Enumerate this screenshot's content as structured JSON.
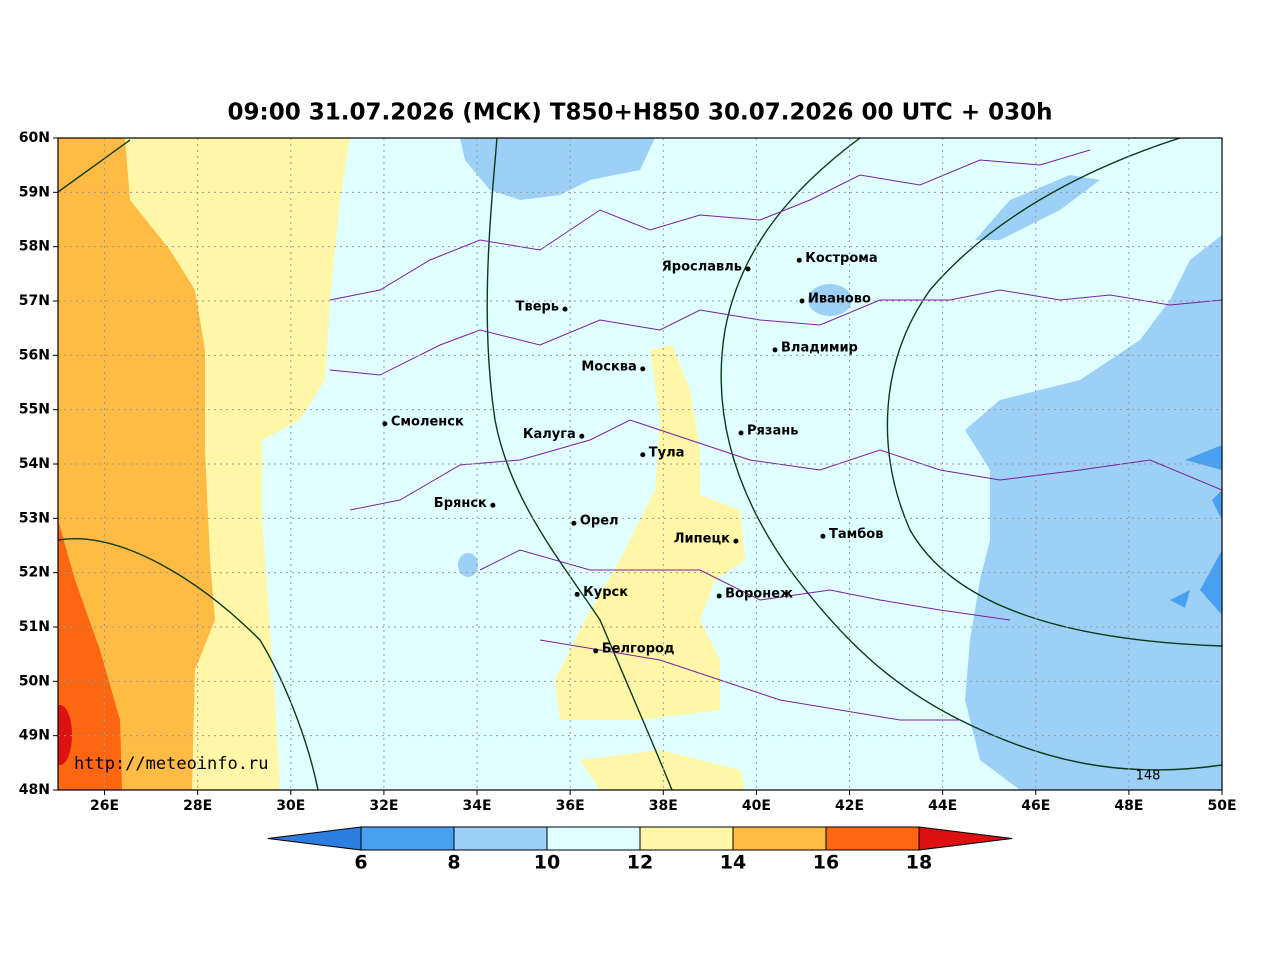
{
  "title": "09:00 31.07.2026 (МСК) T850+H850 30.07.2026 00 UTC + 030h",
  "map": {
    "lon_range": [
      25,
      50
    ],
    "lat_range": [
      48,
      60
    ],
    "lon_ticks": [
      {
        "value": 26,
        "label": "26E"
      },
      {
        "value": 28,
        "label": "28E"
      },
      {
        "value": 30,
        "label": "30E"
      },
      {
        "value": 32,
        "label": "32E"
      },
      {
        "value": 34,
        "label": "34E"
      },
      {
        "value": 36,
        "label": "36E"
      },
      {
        "value": 38,
        "label": "38E"
      },
      {
        "value": 40,
        "label": "40E"
      },
      {
        "value": 42,
        "label": "42E"
      },
      {
        "value": 44,
        "label": "44E"
      },
      {
        "value": 46,
        "label": "46E"
      },
      {
        "value": 48,
        "label": "48E"
      },
      {
        "value": 50,
        "label": "50E"
      }
    ],
    "lat_ticks": [
      {
        "value": 48,
        "label": "48N"
      },
      {
        "value": 49,
        "label": "49N"
      },
      {
        "value": 50,
        "label": "50N"
      },
      {
        "value": 51,
        "label": "51N"
      },
      {
        "value": 52,
        "label": "52N"
      },
      {
        "value": 53,
        "label": "53N"
      },
      {
        "value": 54,
        "label": "54N"
      },
      {
        "value": 55,
        "label": "55N"
      },
      {
        "value": 56,
        "label": "56N"
      },
      {
        "value": 57,
        "label": "57N"
      },
      {
        "value": 58,
        "label": "58N"
      },
      {
        "value": 59,
        "label": "59N"
      },
      {
        "value": 60,
        "label": "60N"
      }
    ],
    "grid": true,
    "cities": [
      {
        "name": "Ярославль",
        "lon": 39.82,
        "lat": 57.59
      },
      {
        "name": "Кострома",
        "lon": 40.92,
        "lat": 57.75
      },
      {
        "name": "Иваново",
        "lon": 40.98,
        "lat": 57.0
      },
      {
        "name": "Тверь",
        "lon": 35.89,
        "lat": 56.85
      },
      {
        "name": "Владимир",
        "lon": 40.4,
        "lat": 56.1
      },
      {
        "name": "Москва",
        "lon": 37.56,
        "lat": 55.75
      },
      {
        "name": "Смоленск",
        "lon": 32.02,
        "lat": 54.74
      },
      {
        "name": "Калуга",
        "lon": 36.25,
        "lat": 54.51
      },
      {
        "name": "Рязань",
        "lon": 39.67,
        "lat": 54.57
      },
      {
        "name": "Тула",
        "lon": 37.56,
        "lat": 54.17
      },
      {
        "name": "Брянск",
        "lon": 34.34,
        "lat": 53.24
      },
      {
        "name": "Орел",
        "lon": 36.08,
        "lat": 52.91
      },
      {
        "name": "Липецк",
        "lon": 39.56,
        "lat": 52.58
      },
      {
        "name": "Тамбов",
        "lon": 41.43,
        "lat": 52.67
      },
      {
        "name": "Курск",
        "lon": 36.15,
        "lat": 51.6
      },
      {
        "name": "Воронеж",
        "lon": 39.2,
        "lat": 51.57
      },
      {
        "name": "Белгород",
        "lon": 36.55,
        "lat": 50.56
      }
    ],
    "contour_label": "148",
    "source": "http://meteoinfo.ru"
  },
  "colorbar": {
    "levels": [
      6,
      8,
      10,
      12,
      14,
      16,
      18
    ],
    "colors": [
      "#2c7fe0",
      "#4aa0f0",
      "#9dd0f6",
      "#e0ffff",
      "#fff6a8",
      "#ffbb44",
      "#ff6611",
      "#dd1111"
    ]
  }
}
